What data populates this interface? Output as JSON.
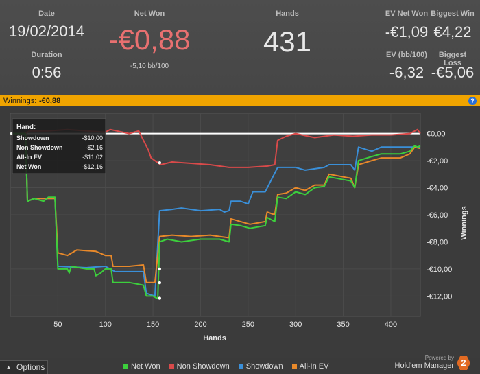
{
  "header": {
    "date_label": "Date",
    "date_value": "19/02/2014",
    "duration_label": "Duration",
    "duration_value": "0:56",
    "netwon_label": "Net Won",
    "netwon_value": "-€0,88",
    "netwon_sub": "-5,10 bb/100",
    "hands_label": "Hands",
    "hands_value": "431",
    "ev_net_won_label": "EV Net Won",
    "ev_net_won_value": "-€1,09",
    "biggest_win_label": "Biggest Win",
    "biggest_win_value": "€4,22",
    "ev_bb_label": "EV (bb/100)",
    "ev_bb_value": "-6,32",
    "biggest_loss_label": "Biggest Loss",
    "biggest_loss_value": "-€5,06"
  },
  "winnings_bar": {
    "label": "Winnings:",
    "value": "-€0,88",
    "help": "?"
  },
  "tooltip": {
    "title": "Hand:",
    "rows": [
      {
        "name": "Showdown",
        "value": "-$10,00"
      },
      {
        "name": "Non Showdown",
        "value": "-$2,16"
      },
      {
        "name": "All-In EV",
        "value": "-$11,02"
      },
      {
        "name": "Net Won",
        "value": "-$12,16"
      }
    ]
  },
  "colors": {
    "net_won": "#3ccf3c",
    "non_showdown": "#d94a4a",
    "showdown": "#3a8fd8",
    "allin_ev": "#e8892a",
    "accent_bar": "#f0a400",
    "negative_value": "#e87070"
  },
  "chart_data": {
    "type": "line",
    "xlabel": "Hands",
    "ylabel": "Winnings",
    "xlim": [
      0,
      431
    ],
    "ylim": [
      -13.5,
      1.5
    ],
    "x_ticks": [
      "50",
      "100",
      "150",
      "200",
      "250",
      "300",
      "350",
      "400"
    ],
    "x_tick_values": [
      50,
      100,
      150,
      200,
      250,
      300,
      350,
      400
    ],
    "y_ticks": [
      "€0,00",
      "-€2,00",
      "-€4,00",
      "-€6,00",
      "-€8,00",
      "-€10,00",
      "-€12,00"
    ],
    "y_tick_values": [
      0,
      -2,
      -4,
      -6,
      -8,
      -10,
      -12
    ],
    "grid": true,
    "legend_position": "bottom",
    "series": [
      {
        "name": "Net Won",
        "points": [
          [
            0,
            0
          ],
          [
            16,
            0
          ],
          [
            18,
            -5.0
          ],
          [
            25,
            -4.8
          ],
          [
            35,
            -5.0
          ],
          [
            40,
            -4.7
          ],
          [
            47,
            -4.7
          ],
          [
            50,
            -10.0
          ],
          [
            60,
            -10.0
          ],
          [
            62,
            -10.3
          ],
          [
            64,
            -9.8
          ],
          [
            80,
            -10.0
          ],
          [
            88,
            -10.0
          ],
          [
            90,
            -10.5
          ],
          [
            95,
            -10.3
          ],
          [
            100,
            -10.0
          ],
          [
            106,
            -10.0
          ],
          [
            108,
            -11.0
          ],
          [
            125,
            -11.0
          ],
          [
            140,
            -11.2
          ],
          [
            143,
            -12.0
          ],
          [
            150,
            -12.0
          ],
          [
            155,
            -12.2
          ],
          [
            157,
            -8.0
          ],
          [
            165,
            -7.8
          ],
          [
            180,
            -8.0
          ],
          [
            200,
            -7.8
          ],
          [
            220,
            -7.8
          ],
          [
            230,
            -8.0
          ],
          [
            232,
            -6.7
          ],
          [
            242,
            -6.8
          ],
          [
            252,
            -7.0
          ],
          [
            268,
            -6.8
          ],
          [
            270,
            -6.2
          ],
          [
            278,
            -6.5
          ],
          [
            281,
            -4.7
          ],
          [
            290,
            -4.8
          ],
          [
            300,
            -4.3
          ],
          [
            310,
            -4.5
          ],
          [
            320,
            -4.0
          ],
          [
            330,
            -3.9
          ],
          [
            335,
            -3.2
          ],
          [
            350,
            -3.4
          ],
          [
            358,
            -3.5
          ],
          [
            362,
            -4.0
          ],
          [
            366,
            -2.0
          ],
          [
            380,
            -1.7
          ],
          [
            390,
            -1.5
          ],
          [
            400,
            -1.5
          ],
          [
            410,
            -1.5
          ],
          [
            420,
            -1.3
          ],
          [
            425,
            -0.9
          ],
          [
            428,
            -1.0
          ],
          [
            431,
            -0.9
          ]
        ]
      },
      {
        "name": "Non Showdown",
        "points": [
          [
            0,
            0
          ],
          [
            16,
            0
          ],
          [
            20,
            0.2
          ],
          [
            40,
            0.2
          ],
          [
            60,
            0.3
          ],
          [
            80,
            0.2
          ],
          [
            100,
            0.1
          ],
          [
            105,
            0.3
          ],
          [
            125,
            0.0
          ],
          [
            135,
            0.2
          ],
          [
            140,
            -0.5
          ],
          [
            145,
            -1.2
          ],
          [
            148,
            -1.8
          ],
          [
            152,
            -2.0
          ],
          [
            158,
            -2.3
          ],
          [
            170,
            -2.1
          ],
          [
            190,
            -2.2
          ],
          [
            210,
            -2.3
          ],
          [
            230,
            -2.5
          ],
          [
            250,
            -2.5
          ],
          [
            270,
            -2.4
          ],
          [
            278,
            -2.3
          ],
          [
            281,
            -0.5
          ],
          [
            290,
            -0.2
          ],
          [
            300,
            0.0
          ],
          [
            320,
            -0.3
          ],
          [
            340,
            -0.1
          ],
          [
            360,
            -0.2
          ],
          [
            380,
            -0.1
          ],
          [
            400,
            -0.1
          ],
          [
            420,
            0.0
          ],
          [
            428,
            0.3
          ],
          [
            431,
            0.0
          ]
        ]
      },
      {
        "name": "Showdown",
        "points": [
          [
            0,
            0
          ],
          [
            16,
            0
          ],
          [
            18,
            -5.0
          ],
          [
            25,
            -4.8
          ],
          [
            40,
            -4.8
          ],
          [
            47,
            -4.8
          ],
          [
            50,
            -9.8
          ],
          [
            80,
            -9.9
          ],
          [
            100,
            -9.8
          ],
          [
            110,
            -10.2
          ],
          [
            130,
            -10.2
          ],
          [
            140,
            -10.2
          ],
          [
            143,
            -11.8
          ],
          [
            152,
            -12.0
          ],
          [
            157,
            -5.7
          ],
          [
            170,
            -5.6
          ],
          [
            180,
            -5.5
          ],
          [
            200,
            -5.7
          ],
          [
            220,
            -5.6
          ],
          [
            225,
            -5.8
          ],
          [
            230,
            -5.7
          ],
          [
            232,
            -5.0
          ],
          [
            242,
            -5.0
          ],
          [
            250,
            -5.2
          ],
          [
            255,
            -4.3
          ],
          [
            268,
            -4.3
          ],
          [
            281,
            -2.5
          ],
          [
            300,
            -2.5
          ],
          [
            310,
            -2.7
          ],
          [
            330,
            -2.5
          ],
          [
            335,
            -2.3
          ],
          [
            350,
            -2.3
          ],
          [
            358,
            -2.3
          ],
          [
            362,
            -2.7
          ],
          [
            366,
            -1.0
          ],
          [
            380,
            -1.3
          ],
          [
            390,
            -1.0
          ],
          [
            400,
            -1.0
          ],
          [
            410,
            -1.0
          ],
          [
            420,
            -1.0
          ],
          [
            431,
            -1.0
          ]
        ]
      },
      {
        "name": "All-In EV",
        "points": [
          [
            0,
            0
          ],
          [
            16,
            0
          ],
          [
            18,
            -5.0
          ],
          [
            25,
            -4.8
          ],
          [
            40,
            -4.8
          ],
          [
            47,
            -4.8
          ],
          [
            50,
            -8.8
          ],
          [
            60,
            -9.0
          ],
          [
            70,
            -8.6
          ],
          [
            90,
            -8.7
          ],
          [
            100,
            -9.0
          ],
          [
            106,
            -9.0
          ],
          [
            108,
            -9.8
          ],
          [
            125,
            -9.8
          ],
          [
            140,
            -9.7
          ],
          [
            143,
            -11.0
          ],
          [
            152,
            -11.0
          ],
          [
            157,
            -7.6
          ],
          [
            170,
            -7.5
          ],
          [
            190,
            -7.6
          ],
          [
            210,
            -7.5
          ],
          [
            220,
            -7.6
          ],
          [
            230,
            -7.7
          ],
          [
            232,
            -6.3
          ],
          [
            242,
            -6.5
          ],
          [
            252,
            -6.7
          ],
          [
            268,
            -6.5
          ],
          [
            270,
            -5.8
          ],
          [
            278,
            -6.0
          ],
          [
            281,
            -4.5
          ],
          [
            290,
            -4.4
          ],
          [
            300,
            -4.0
          ],
          [
            310,
            -4.2
          ],
          [
            320,
            -3.8
          ],
          [
            330,
            -3.8
          ],
          [
            335,
            -3.0
          ],
          [
            350,
            -3.2
          ],
          [
            358,
            -3.3
          ],
          [
            362,
            -4.0
          ],
          [
            366,
            -2.3
          ],
          [
            380,
            -2.0
          ],
          [
            390,
            -1.8
          ],
          [
            400,
            -1.8
          ],
          [
            410,
            -1.8
          ],
          [
            420,
            -1.5
          ],
          [
            425,
            -1.0
          ],
          [
            431,
            -1.1
          ]
        ]
      }
    ]
  },
  "footer": {
    "options_label": "Options",
    "legend": [
      {
        "name": "Net Won",
        "color": "#3ccf3c"
      },
      {
        "name": "Non Showdown",
        "color": "#d94a4a"
      },
      {
        "name": "Showdown",
        "color": "#3a8fd8"
      },
      {
        "name": "All-In EV",
        "color": "#e8892a"
      }
    ],
    "powered_by": "Powered by",
    "brand": "Hold'em Manager",
    "brand_logo": "2"
  }
}
